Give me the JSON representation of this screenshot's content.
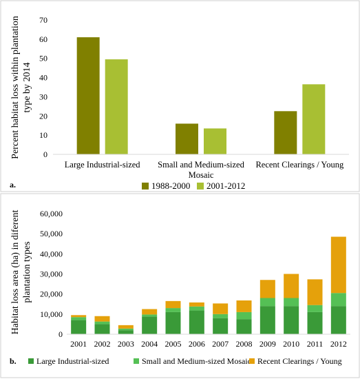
{
  "colors": {
    "olive_dark": "#808000",
    "olive_light": "#a8bf33",
    "green_dark": "#3a9a38",
    "green_light": "#55c055",
    "orange": "#e5a10b",
    "axis": "#d9d9d9",
    "border": "#cfcfcf"
  },
  "chart_data": [
    {
      "type": "bar",
      "panel_label": "a.",
      "ylabel": "Percent habitat loss within  plantation type by 2014",
      "ylim": [
        0,
        70
      ],
      "yticks": [
        0,
        10,
        20,
        30,
        40,
        50,
        60,
        70
      ],
      "categories": [
        "Large Industrial-sized",
        "Small and Medium-sized Mosaic",
        "Recent Clearings / Young"
      ],
      "legend_position": "bottom",
      "grid": false,
      "series": [
        {
          "name": "1988-2000",
          "color": "#808000",
          "values": [
            61,
            16,
            22.5
          ]
        },
        {
          "name": "2001-2012",
          "color": "#a8bf33",
          "values": [
            49.5,
            13.5,
            36.5
          ]
        }
      ]
    },
    {
      "type": "bar",
      "stacked": true,
      "panel_label": "b.",
      "ylabel": "Habitat loss area (ha) in diferent plantation types",
      "ylim": [
        0,
        60000
      ],
      "yticks": [
        "0",
        "10,000",
        "20,000",
        "30,000",
        "40,000",
        "50,000",
        "60,000"
      ],
      "categories": [
        "2001",
        "2002",
        "2003",
        "2004",
        "2005",
        "2006",
        "2007",
        "2008",
        "2009",
        "2010",
        "2011",
        "2012"
      ],
      "legend_position": "bottom",
      "grid": false,
      "series": [
        {
          "name": "Large Industrial-sized",
          "color": "#3a9a38",
          "values": [
            7000,
            5000,
            2000,
            8800,
            11000,
            11800,
            8000,
            7500,
            14000,
            14000,
            11000,
            14000
          ]
        },
        {
          "name": "Small and Medium-sized Mosaic",
          "color": "#55c055",
          "values": [
            1500,
            1300,
            800,
            1000,
            2000,
            2000,
            2000,
            3500,
            4000,
            4000,
            3500,
            6500
          ]
        },
        {
          "name": "Recent Clearings / Young",
          "color": "#e5a10b",
          "values": [
            1000,
            2700,
            1700,
            2700,
            3500,
            2000,
            5300,
            5800,
            9000,
            12000,
            12800,
            28000
          ]
        }
      ]
    }
  ]
}
